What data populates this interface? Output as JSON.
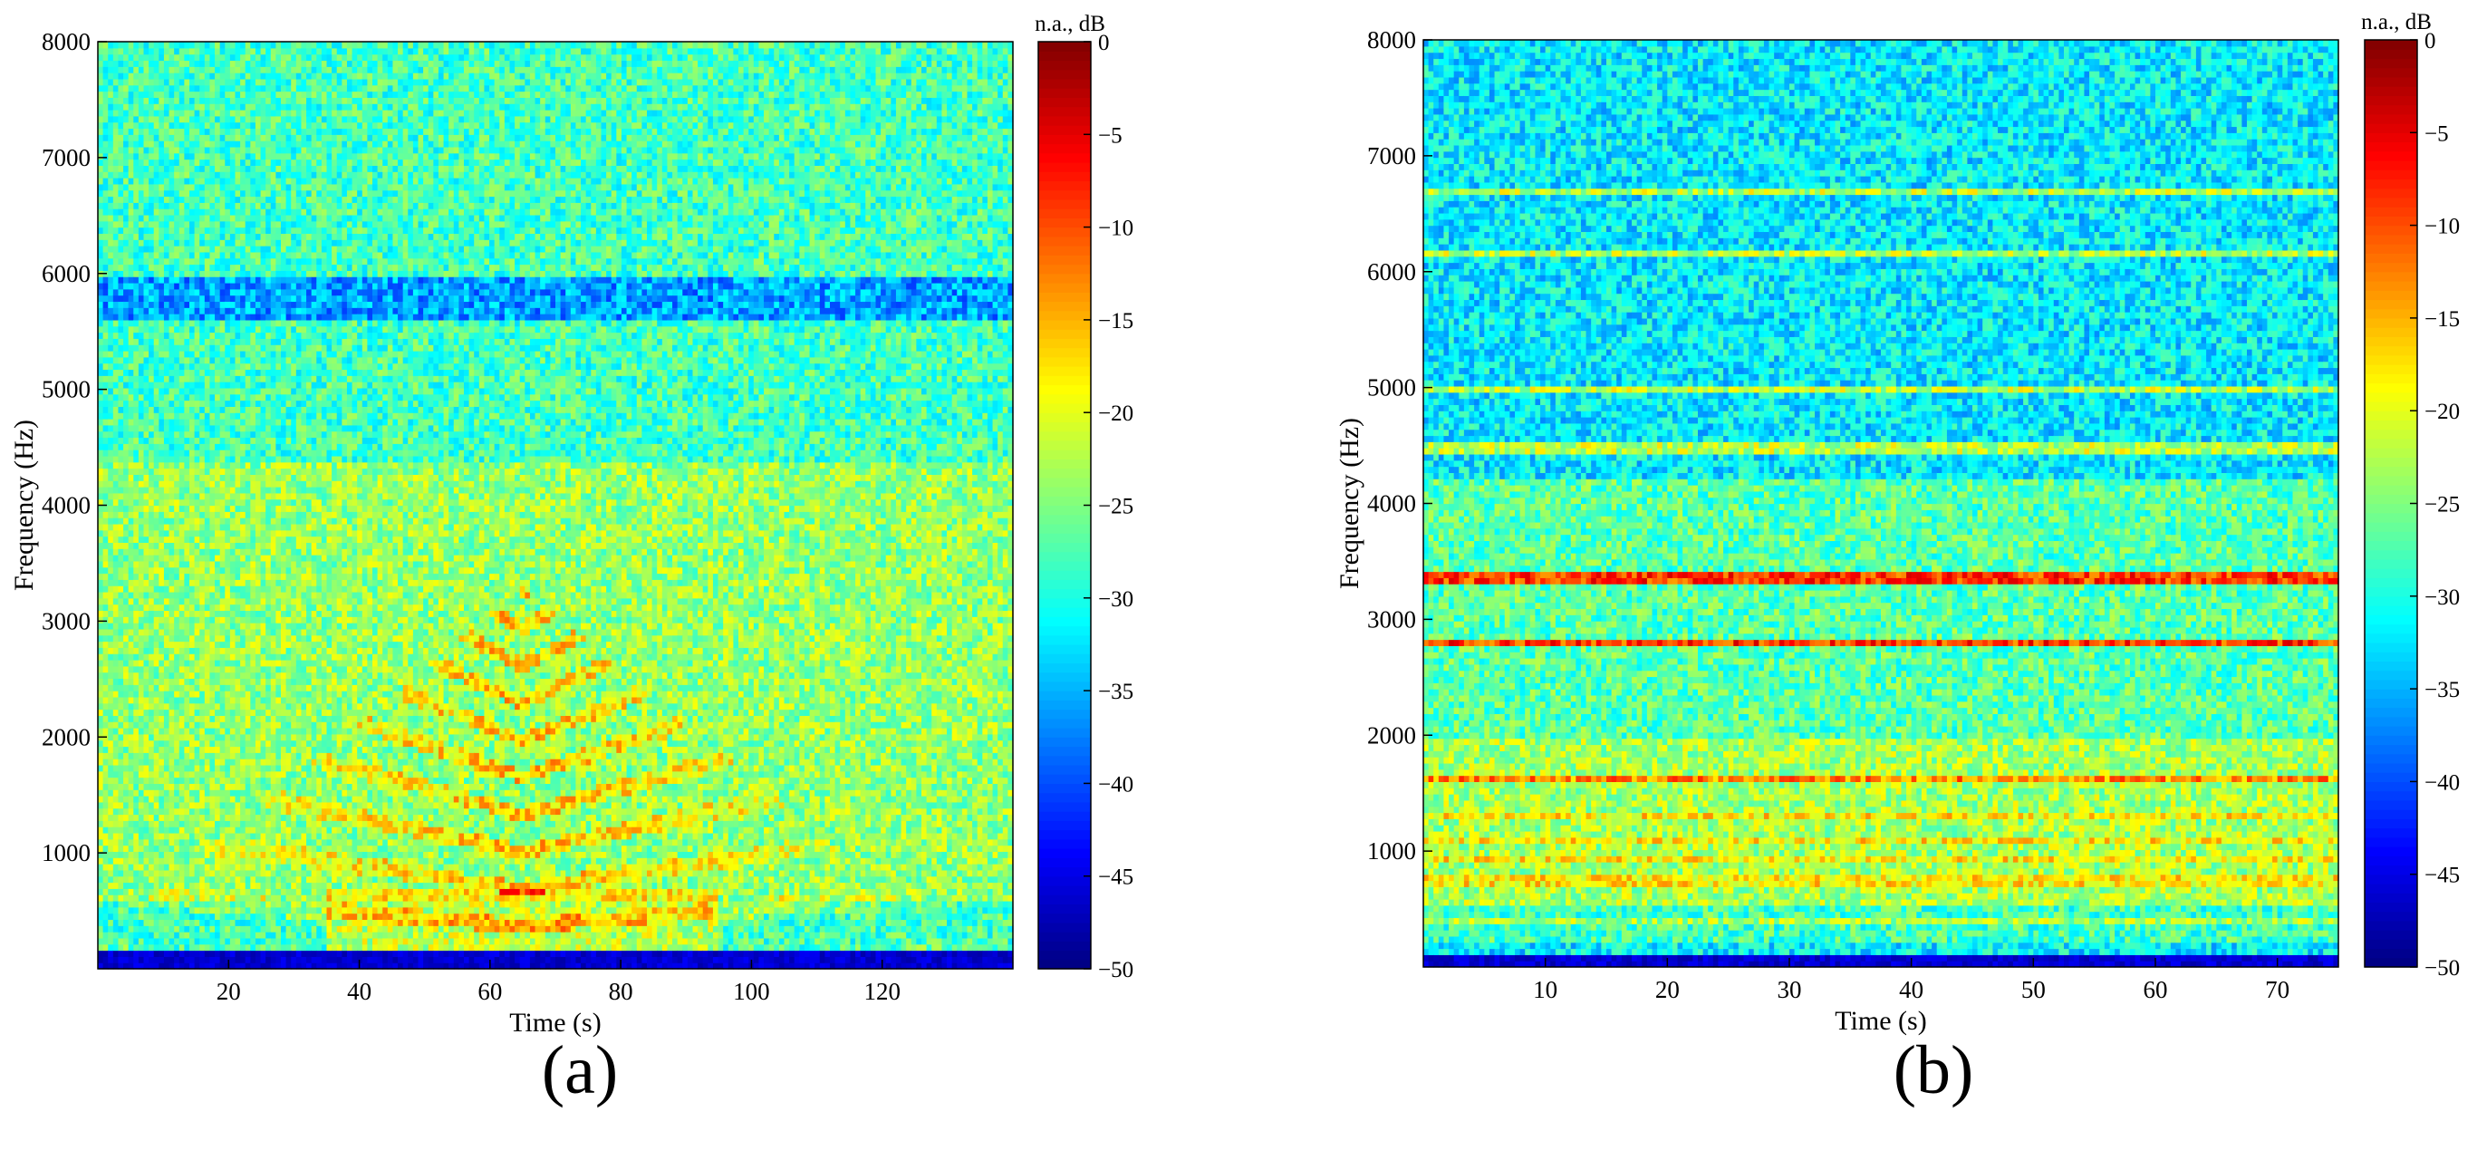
{
  "chart_data": [
    {
      "type": "heatmap",
      "panel_label": "(a)",
      "xlabel": "Time (s)",
      "ylabel": "Frequency (Hz)",
      "xlim": [
        0,
        140
      ],
      "ylim": [
        0,
        8000
      ],
      "xticks": [
        20,
        40,
        60,
        80,
        100,
        120
      ],
      "yticks": [
        1000,
        2000,
        3000,
        4000,
        5000,
        6000,
        7000,
        8000
      ],
      "colorbar": {
        "label": "n.a., dB",
        "range": [
          -50,
          0
        ],
        "ticks": [
          0,
          -5,
          -10,
          -15,
          -20,
          -25,
          -30,
          -35,
          -40,
          -45,
          -50
        ],
        "colormap": "jet"
      },
      "features": {
        "background_level_db": -28,
        "low_level_band_hz": [
          5600,
          6000
        ],
        "low_level_band_db": -38,
        "harmonic_pattern_center_s": 65,
        "peak_level_db": -10
      }
    },
    {
      "type": "heatmap",
      "panel_label": "(b)",
      "xlabel": "Time (s)",
      "ylabel": "Frequency (Hz)",
      "xlim": [
        0,
        75
      ],
      "ylim": [
        0,
        8000
      ],
      "xticks": [
        10,
        20,
        30,
        40,
        50,
        60,
        70
      ],
      "yticks": [
        1000,
        2000,
        3000,
        4000,
        5000,
        6000,
        7000,
        8000
      ],
      "colorbar": {
        "label": "n.a., dB",
        "range": [
          -50,
          0
        ],
        "ticks": [
          0,
          -5,
          -10,
          -15,
          -20,
          -25,
          -30,
          -35,
          -40,
          -45,
          -50
        ],
        "colormap": "jet"
      },
      "features": {
        "background_level_db": -32,
        "tonal_lines_hz": [
          6700,
          6150,
          5000,
          4480,
          3360,
          2800,
          1650
        ],
        "strongest_tonal_lines_hz": [
          3360,
          2800
        ],
        "peak_level_db": -5
      }
    }
  ]
}
